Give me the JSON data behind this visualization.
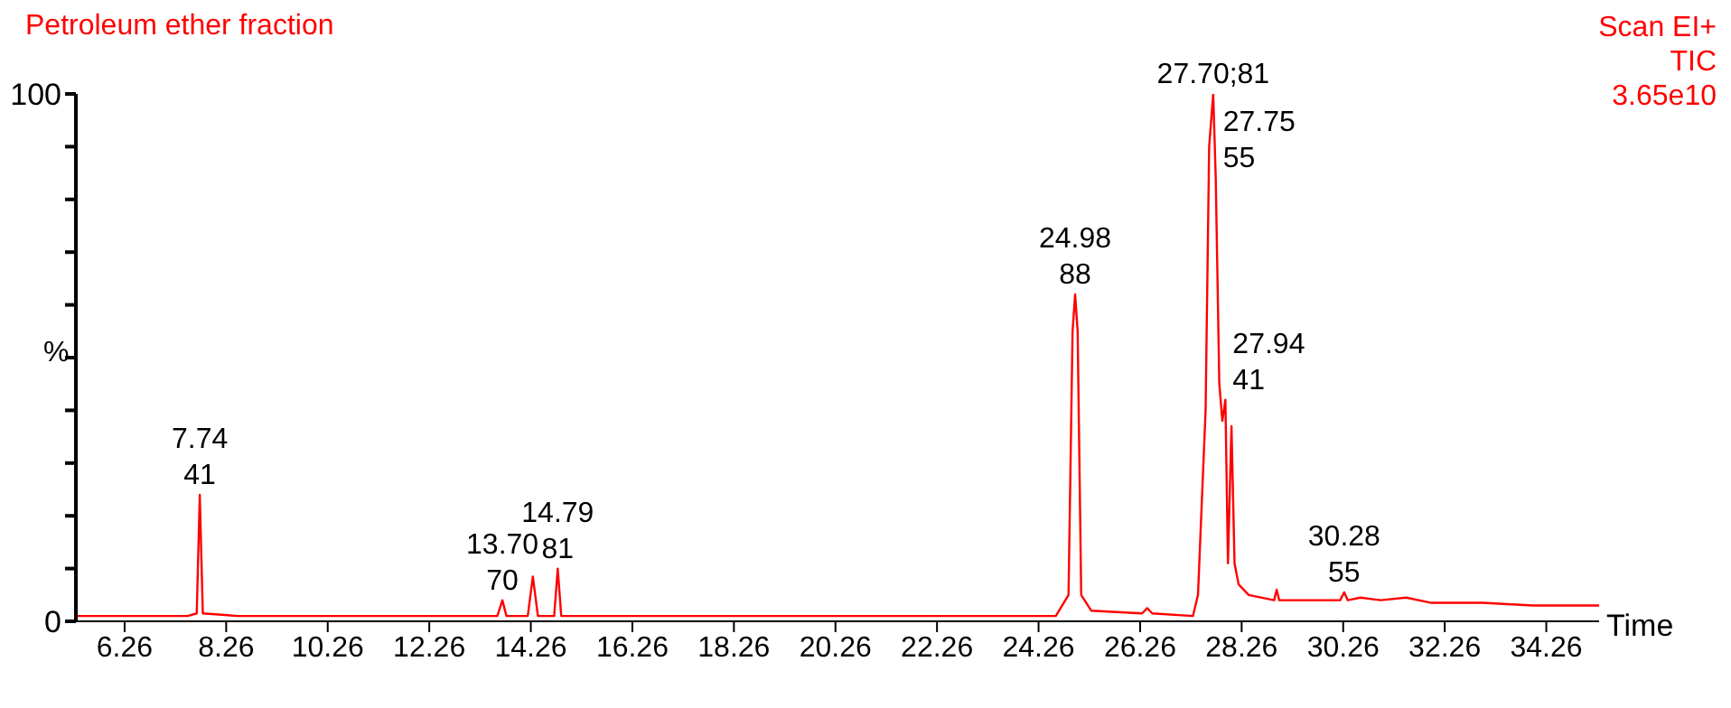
{
  "chart_data": {
    "type": "line",
    "title": "Petroleum ether fraction",
    "xlabel": "Time",
    "ylabel": "%",
    "annotations": [
      "Scan EI+\nTIC\n3.65e10",
      {
        "text": "7.74\n41",
        "x": 7.74,
        "y": 24
      },
      {
        "text": "13.70\n70",
        "x": 13.7,
        "y": 4
      },
      {
        "text": "14.79\n81",
        "x": 14.79,
        "y": 10
      },
      {
        "text": "24.98\n88",
        "x": 24.98,
        "y": 62
      },
      {
        "text": "27.70;81",
        "x": 27.7,
        "y": 100
      },
      {
        "text": "27.75\n55",
        "x": 27.75,
        "y": 84
      },
      {
        "text": "27.94\n41",
        "x": 27.94,
        "y": 42
      },
      {
        "text": "30.28\n55",
        "x": 30.28,
        "y": 5.5
      }
    ],
    "x": [
      5.3,
      7.5,
      7.68,
      7.74,
      7.8,
      8.5,
      10,
      12,
      13.6,
      13.7,
      13.78,
      14.2,
      14.3,
      14.4,
      14.72,
      14.79,
      14.86,
      16,
      18,
      20,
      22,
      24.6,
      24.85,
      24.93,
      24.98,
      25.03,
      25.1,
      25.3,
      26.3,
      26.4,
      26.5,
      27.3,
      27.4,
      27.55,
      27.62,
      27.7,
      27.75,
      27.82,
      27.88,
      27.94,
      27.99,
      28.06,
      28.12,
      28.2,
      28.4,
      28.9,
      28.95,
      29,
      30.2,
      30.28,
      30.35,
      30.6,
      31,
      31.5,
      32,
      33,
      34,
      35.3
    ],
    "series": [
      {
        "color": "#ff0000",
        "values": [
          1,
          1,
          1.5,
          24,
          1.5,
          1,
          1,
          1,
          1,
          4,
          1,
          1,
          8.5,
          1,
          1,
          10,
          1,
          1,
          1,
          1,
          1,
          1,
          5,
          55,
          62,
          55,
          5,
          2,
          1.5,
          2.5,
          1.5,
          1,
          5,
          40,
          90,
          100,
          84,
          45,
          38,
          42,
          11,
          37,
          11,
          7,
          5,
          4,
          6,
          4,
          4,
          5.5,
          4,
          4.5,
          4,
          4.5,
          3.5,
          3.5,
          3,
          3
        ]
      }
    ],
    "xlim": [
      5.3,
      35.3
    ],
    "xticks": [
      6.26,
      8.26,
      10.26,
      12.26,
      14.26,
      16.26,
      18.26,
      20.26,
      22.26,
      24.26,
      26.26,
      28.26,
      30.26,
      32.26,
      34.26
    ],
    "ylim": [
      0,
      100
    ],
    "yticks": [
      0,
      {
        "value": 10,
        "label": null
      },
      {
        "value": 20,
        "label": null
      },
      {
        "value": 30,
        "label": null
      },
      {
        "value": 40,
        "label": null
      },
      {
        "value": 50,
        "label": null
      },
      {
        "value": 60,
        "label": null
      },
      {
        "value": 70,
        "label": null
      },
      {
        "value": 80,
        "label": null
      },
      {
        "value": 90,
        "label": null
      },
      100
    ],
    "grid": false,
    "marker": "none",
    "line_style": "solid"
  }
}
